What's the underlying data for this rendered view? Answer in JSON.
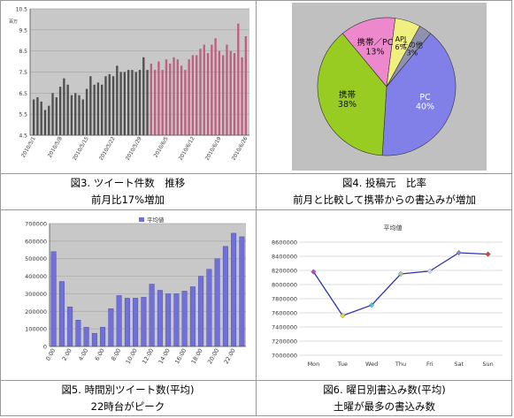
{
  "captions": {
    "fig3_title": "図3. ツイート件数　推移",
    "fig3_note": "前月比17%増加",
    "fig4_title": "図4. 投稿元　比率",
    "fig4_note": "前月と比較して携帯からの書込みが増加",
    "fig5_title": "図5. 時間別ツイート数(平均)",
    "fig5_note": "22時台がピーク",
    "fig6_title": "図6. 曜日別書込み数(平均)",
    "fig6_note": "土曜が最多の書込み数"
  },
  "chart_data": [
    {
      "id": "fig3",
      "type": "bar",
      "ylabel": "百万",
      "ylim": [
        4.5,
        10.5
      ],
      "yticks": [
        "4.5",
        "5.5",
        "6.5",
        "7.5",
        "8.5",
        "9.5",
        "10.5"
      ],
      "grid": true,
      "x_tick_labels": [
        "2010/5/1",
        "2010/5/8",
        "2010/5/15",
        "2010/5/22",
        "2010/5/29",
        "2010/6/5",
        "2010/6/12",
        "2010/6/19",
        "2010/6/26"
      ],
      "series": [
        {
          "color": "#505050",
          "values": [
            6.2,
            6.3,
            6.1,
            5.7,
            5.9,
            6.5,
            6.3,
            6.8,
            7.2,
            6.9,
            6.4,
            6.5,
            6.4,
            6.2,
            6.7,
            7.3,
            6.9,
            7.0,
            6.9,
            7.3,
            7.4,
            7.3,
            7.8,
            7.5,
            7.5,
            7.6,
            7.6,
            7.5,
            7.6,
            8.2,
            7.6
          ]
        },
        {
          "color": "#c06080",
          "values": [
            7.9,
            7.6,
            8.0,
            7.6,
            8.1,
            7.9,
            8.2,
            8.1,
            7.8,
            7.6,
            8.1,
            8.3,
            8.3,
            8.6,
            8.8,
            8.4,
            8.8,
            9.1,
            8.5,
            8.3,
            8.8,
            8.5,
            8.4,
            9.8,
            8.2,
            9.2
          ]
        }
      ]
    },
    {
      "id": "fig4",
      "type": "pie",
      "slices": [
        {
          "label": "PC",
          "value": 40,
          "display": "PC\n40%",
          "color": "#8080e8"
        },
        {
          "label": "携帯",
          "value": 38,
          "display": "携帯\n38%",
          "color": "#99cc22"
        },
        {
          "label": "携帯／PC",
          "value": 13,
          "display": "携帯／PC\n13%",
          "color": "#ee88cc"
        },
        {
          "label": "API",
          "value": 6,
          "display": "API\n6%",
          "color": "#f0f080"
        },
        {
          "label": "その他",
          "value": 3,
          "display": "その他\n3%",
          "color": "#9090b0"
        }
      ]
    },
    {
      "id": "fig5",
      "type": "bar",
      "legend": [
        "平均値"
      ],
      "ylim": [
        0,
        700000
      ],
      "yticks": [
        "0",
        "100000",
        "200000",
        "300000",
        "400000",
        "500000",
        "600000",
        "700000"
      ],
      "categories": [
        "0:00",
        "1:00",
        "2:00",
        "3:00",
        "4:00",
        "5:00",
        "6:00",
        "7:00",
        "8:00",
        "9:00",
        "10:00",
        "11:00",
        "12:00",
        "13:00",
        "14:00",
        "15:00",
        "16:00",
        "17:00",
        "18:00",
        "19:00",
        "20:00",
        "21:00",
        "22:00",
        "23:00"
      ],
      "x_tick_labels": [
        "0:00",
        "2:00",
        "4:00",
        "6:00",
        "8:00",
        "10:00",
        "12:00",
        "14:00",
        "16:00",
        "18:00",
        "20:00",
        "22:00"
      ],
      "values": [
        540000,
        370000,
        225000,
        150000,
        110000,
        75000,
        110000,
        215000,
        290000,
        275000,
        275000,
        280000,
        355000,
        320000,
        300000,
        300000,
        315000,
        340000,
        400000,
        440000,
        500000,
        570000,
        645000,
        625000
      ]
    },
    {
      "id": "fig6",
      "type": "line",
      "title": "平均値",
      "ylim": [
        7000000,
        8600000
      ],
      "yticks": [
        "7000000",
        "7200000",
        "7400000",
        "7600000",
        "7800000",
        "8000000",
        "8200000",
        "8400000",
        "8600000"
      ],
      "categories": [
        "Mon",
        "Tue",
        "Wed",
        "Thu",
        "Fri",
        "Sat",
        "Sun"
      ],
      "values": [
        8180000,
        7560000,
        7710000,
        8150000,
        8190000,
        8450000,
        8430000
      ],
      "marker_colors": [
        "#cc44cc",
        "#dddd44",
        "#44cccc",
        "#aaccaa",
        "#ccddee",
        "#8888cc",
        "#cc4444"
      ],
      "line_color": "#3333aa"
    }
  ]
}
